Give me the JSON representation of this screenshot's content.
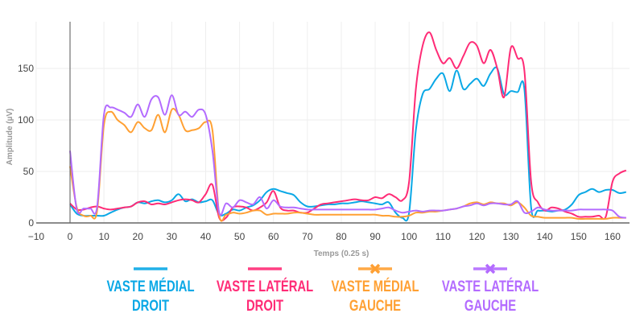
{
  "chart_data": {
    "type": "line",
    "title": "",
    "xlabel": "Temps (0.25 s)",
    "ylabel": "Amplitude (µV)",
    "xlim": [
      -10,
      165
    ],
    "ylim": [
      0,
      195
    ],
    "x_ticks": [
      -10,
      0,
      10,
      20,
      30,
      40,
      50,
      60,
      70,
      80,
      90,
      100,
      110,
      120,
      130,
      140,
      150,
      160
    ],
    "x_tick_labels": [
      "−10",
      "0",
      "10",
      "20",
      "30",
      "40",
      "50",
      "60",
      "70",
      "80",
      "90",
      "100",
      "110",
      "120",
      "130",
      "140",
      "150",
      "160"
    ],
    "y_ticks": [
      0,
      50,
      100,
      150
    ],
    "y_tick_labels": [
      "0",
      "50",
      "100",
      "150"
    ],
    "grid": true,
    "legend_position": "bottom",
    "x_step": 2,
    "x_start": 0,
    "series": [
      {
        "name": "VASTE MÉDIAL DROIT",
        "line1": "VASTE MÉDIAL",
        "line2": "DROIT",
        "color": "#0aa8e6",
        "marker": "none",
        "values": [
          18,
          9,
          7,
          7,
          7,
          7,
          10,
          13,
          15,
          16,
          20,
          19,
          21,
          22,
          20,
          22,
          28,
          21,
          23,
          20,
          21,
          22,
          8,
          9,
          13,
          12,
          15,
          17,
          22,
          30,
          33,
          31,
          29,
          27,
          20,
          16,
          16,
          17,
          18,
          18,
          19,
          19,
          20,
          21,
          20,
          19,
          18,
          20,
          10,
          5,
          10,
          90,
          125,
          130,
          140,
          145,
          128,
          148,
          130,
          135,
          140,
          133,
          145,
          150,
          125,
          128,
          127,
          130,
          15,
          12,
          12,
          11,
          12,
          13,
          18,
          27,
          30,
          33,
          30,
          32,
          32,
          29,
          30
        ]
      },
      {
        "name": "VASTE LATÉRAL DROIT",
        "line1": "VASTE LATÉRAL",
        "line2": "DROIT",
        "color": "#ff2b76",
        "marker": "none",
        "values": [
          19,
          13,
          13,
          15,
          16,
          14,
          13,
          14,
          15,
          16,
          20,
          21,
          18,
          19,
          18,
          20,
          22,
          23,
          22,
          20,
          28,
          37,
          5,
          5,
          15,
          16,
          15,
          12,
          15,
          20,
          31,
          15,
          12,
          12,
          10,
          10,
          14,
          18,
          19,
          20,
          21,
          22,
          23,
          22,
          22,
          25,
          24,
          28,
          25,
          22,
          40,
          130,
          172,
          185,
          168,
          155,
          160,
          150,
          162,
          175,
          172,
          155,
          168,
          150,
          122,
          170,
          160,
          148,
          40,
          20,
          12,
          15,
          14,
          11,
          9,
          6,
          6,
          6,
          7,
          6,
          40,
          48,
          51
        ]
      },
      {
        "name": "VASTE MÉDIAL GAUCHE",
        "line1": "VASTE MÉDIAL",
        "line2": "GAUCHE",
        "color": "#ffa033",
        "marker": "x",
        "values": [
          55,
          15,
          7,
          7,
          12,
          95,
          108,
          100,
          95,
          88,
          98,
          92,
          90,
          105,
          88,
          110,
          105,
          90,
          90,
          92,
          98,
          90,
          8,
          8,
          10,
          9,
          10,
          12,
          12,
          8,
          9,
          9,
          9,
          10,
          10,
          9,
          8,
          8,
          8,
          8,
          8,
          8,
          8,
          8,
          8,
          8,
          7,
          7,
          6,
          6,
          7,
          10,
          10,
          11,
          11,
          12,
          13,
          14,
          16,
          19,
          20,
          18,
          20,
          19,
          19,
          17,
          20,
          15,
          7,
          6,
          5,
          5,
          5,
          5,
          5,
          4,
          4,
          4,
          4,
          4,
          5,
          5,
          5
        ]
      },
      {
        "name": "VASTE LATÉRAL GAUCHE",
        "line1": "VASTE LATÉRAL",
        "line2": "GAUCHE",
        "color": "#b36bff",
        "marker": "x",
        "values": [
          70,
          13,
          14,
          14,
          16,
          105,
          112,
          110,
          107,
          103,
          115,
          103,
          120,
          122,
          105,
          124,
          105,
          108,
          103,
          110,
          105,
          70,
          10,
          19,
          15,
          22,
          20,
          18,
          25,
          14,
          22,
          16,
          15,
          15,
          14,
          13,
          13,
          13,
          13,
          13,
          13,
          13,
          13,
          13,
          13,
          13,
          14,
          15,
          12,
          10,
          11,
          12,
          11,
          12,
          12,
          12,
          13,
          14,
          16,
          17,
          19,
          17,
          19,
          19,
          18,
          18,
          21,
          10,
          11,
          15,
          13,
          12,
          12,
          12,
          12,
          13,
          13,
          13,
          13,
          13,
          12,
          6,
          5
        ]
      }
    ]
  }
}
